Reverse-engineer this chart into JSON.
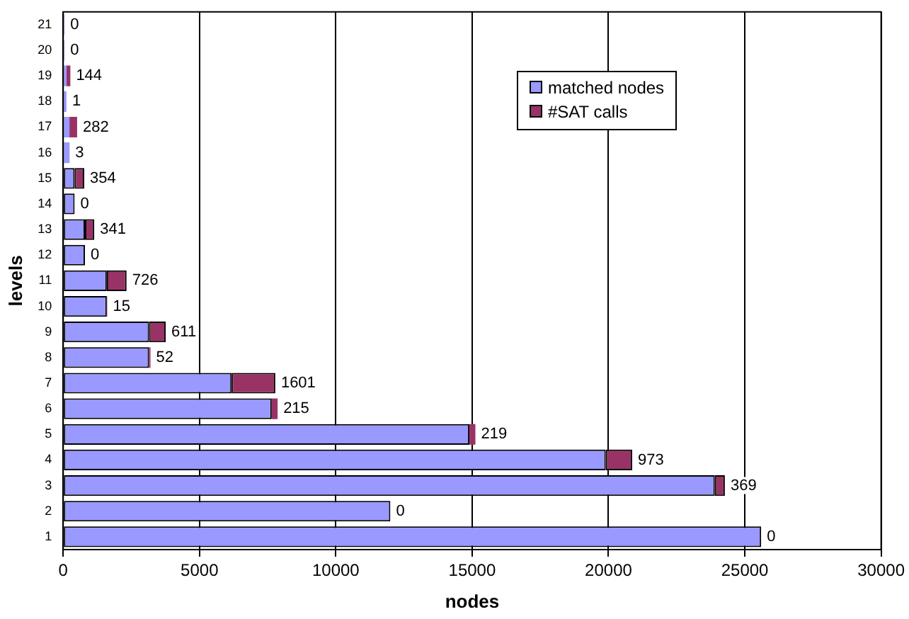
{
  "chart_data": {
    "type": "bar",
    "orientation": "horizontal",
    "stacked": true,
    "xlabel": "nodes",
    "ylabel": "levels",
    "categories": [
      "21",
      "20",
      "19",
      "18",
      "17",
      "16",
      "15",
      "14",
      "13",
      "12",
      "11",
      "10",
      "9",
      "8",
      "7",
      "6",
      "5",
      "4",
      "3",
      "2",
      "1"
    ],
    "series": [
      {
        "name": "matched nodes",
        "color": "#9999ff",
        "values": [
          50,
          50,
          120,
          120,
          230,
          230,
          420,
          420,
          800,
          800,
          1600,
          1600,
          3150,
          3150,
          6180,
          7650,
          14900,
          19900,
          23900,
          12000,
          25600
        ]
      },
      {
        "name": "#SAT calls",
        "color": "#993366",
        "values": [
          0,
          0,
          144,
          1,
          282,
          3,
          354,
          0,
          341,
          0,
          726,
          15,
          611,
          52,
          1601,
          215,
          219,
          973,
          369,
          0,
          0
        ],
        "value_labels": [
          "0",
          "0",
          "144",
          "1",
          "282",
          "3",
          "354",
          "0",
          "341",
          "0",
          "726",
          "15",
          "611",
          "52",
          "1601",
          "215",
          "219",
          "973",
          "369",
          "0",
          "0"
        ]
      }
    ],
    "xlim": [
      0,
      30000
    ],
    "xticks": [
      0,
      5000,
      10000,
      15000,
      20000,
      25000,
      30000
    ],
    "grid": "x",
    "legend": "top right"
  }
}
